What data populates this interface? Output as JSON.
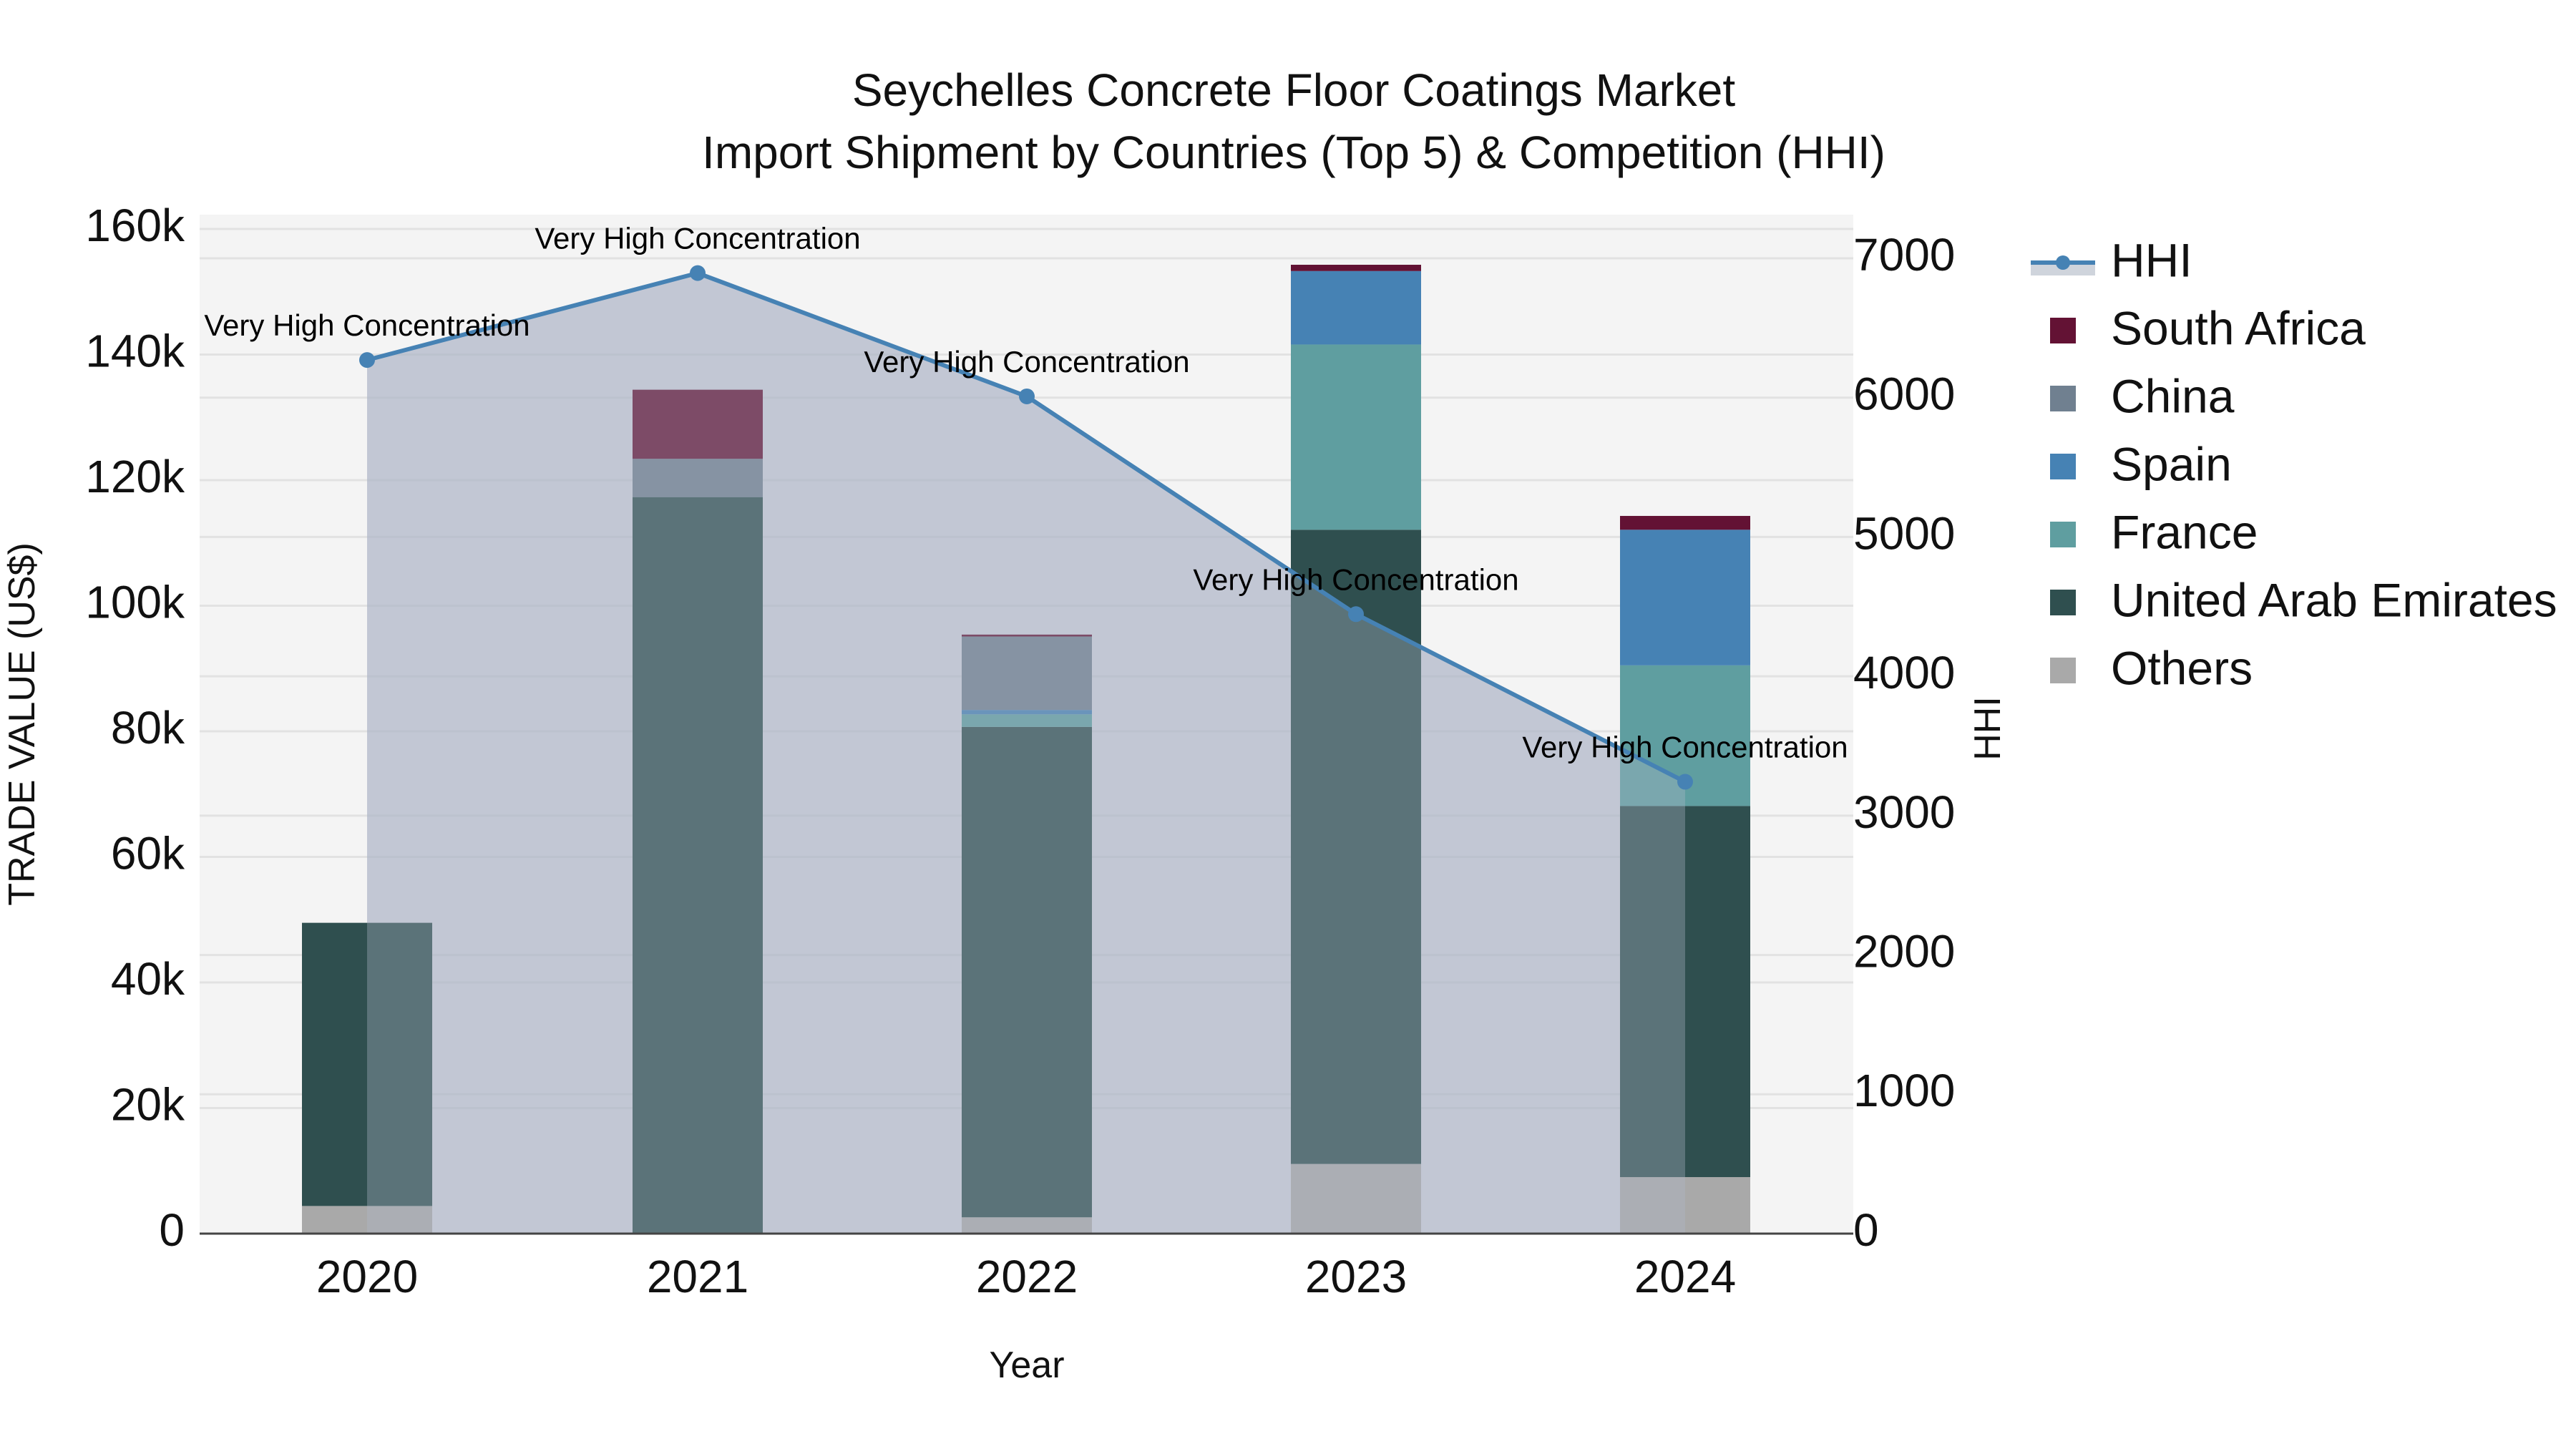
{
  "chart_data": {
    "type": "bar",
    "title": "Seychelles Concrete Floor Coatings Market",
    "subtitle": "Import Shipment by Countries (Top 5) & Competition (HHI)",
    "xlabel": "Year",
    "ylabel": "TRADE VALUE (US$)",
    "y2label": "HHI",
    "categories": [
      "2020",
      "2021",
      "2022",
      "2023",
      "2024"
    ],
    "ylim": [
      0,
      160000
    ],
    "y2lim": [
      0,
      7000
    ],
    "yticks": [
      "0",
      "20k",
      "40k",
      "60k",
      "80k",
      "100k",
      "120k",
      "140k",
      "160k"
    ],
    "y2ticks": [
      "0",
      "1000",
      "2000",
      "3000",
      "4000",
      "5000",
      "6000",
      "7000"
    ],
    "barmode": "stack",
    "grid": true,
    "legend_position": "right",
    "series": [
      {
        "name": "Others",
        "color": "#a9a9a9",
        "values": [
          4400,
          0,
          2600,
          11100,
          9000
        ]
      },
      {
        "name": "United Arab Emirates",
        "color": "#2f4f4f",
        "values": [
          45100,
          117300,
          78100,
          101000,
          59100
        ]
      },
      {
        "name": "France",
        "color": "#5f9ea0",
        "values": [
          0,
          0,
          2000,
          29500,
          22400
        ]
      },
      {
        "name": "Spain",
        "color": "#4682b4",
        "values": [
          0,
          0,
          700,
          11700,
          21600
        ]
      },
      {
        "name": "China",
        "color": "#708090",
        "values": [
          0,
          6100,
          11700,
          0,
          0
        ]
      },
      {
        "name": "South Africa",
        "color": "#631234",
        "values": [
          0,
          11000,
          300,
          1000,
          2200
        ]
      }
    ],
    "line_series": {
      "name": "HHI",
      "axis": "y2",
      "color": "#4682b4",
      "fill_color": "#b0b8c8",
      "values": [
        6270,
        6894,
        6009,
        4446,
        3243
      ],
      "annotations": [
        "Very High Concentration",
        "Very High Concentration",
        "Very High Concentration",
        "Very High Concentration",
        "Very High Concentration"
      ]
    }
  },
  "legend": {
    "items": [
      {
        "label": "HHI",
        "kind": "line",
        "color": "#4682b4"
      },
      {
        "label": "South Africa",
        "kind": "bar",
        "color": "#631234"
      },
      {
        "label": "China",
        "kind": "bar",
        "color": "#708090"
      },
      {
        "label": "Spain",
        "kind": "bar",
        "color": "#4682b4"
      },
      {
        "label": "France",
        "kind": "bar",
        "color": "#5f9ea0"
      },
      {
        "label": "United Arab Emirates",
        "kind": "bar",
        "color": "#2f4f4f"
      },
      {
        "label": "Others",
        "kind": "bar",
        "color": "#a9a9a9"
      }
    ]
  },
  "colors": {
    "plot_bg": "#f4f4f4",
    "grid": "#e2e2e2",
    "axis_line": "#444444"
  }
}
